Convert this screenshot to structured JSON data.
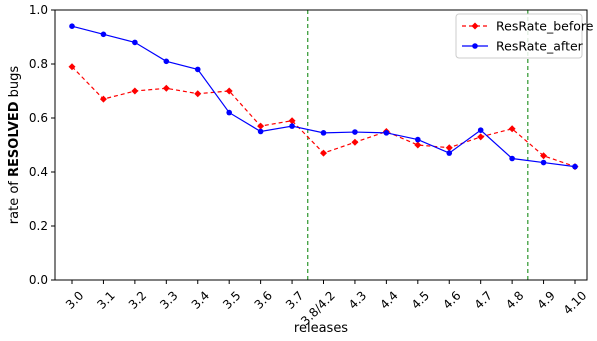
{
  "chart_data": {
    "type": "line",
    "xlabel": "releases",
    "ylabel_prefix": "rate of ",
    "ylabel_bold": "RESOLVED",
    "ylabel_suffix": " bugs",
    "ylim": [
      0.0,
      1.0
    ],
    "yticks": [
      "0.0",
      "0.2",
      "0.4",
      "0.6",
      "0.8",
      "1.0"
    ],
    "categories": [
      "3.0",
      "3.1",
      "3.2",
      "3.3",
      "3.4",
      "3.5",
      "3.6",
      "3.7",
      "3.8/4.2",
      "4.3",
      "4.4",
      "4.5",
      "4.6",
      "4.7",
      "4.8",
      "4.9",
      "4.10"
    ],
    "series": [
      {
        "name": "ResRate_before",
        "color": "#ff0000",
        "style": "dashed",
        "marker": "diamond",
        "values": [
          0.79,
          0.67,
          0.7,
          0.71,
          0.69,
          0.7,
          0.57,
          0.59,
          0.47,
          0.51,
          0.55,
          0.5,
          0.49,
          0.53,
          0.56,
          0.46,
          0.42
        ]
      },
      {
        "name": "ResRate_after",
        "color": "#0000ff",
        "style": "solid",
        "marker": "circle",
        "values": [
          0.94,
          0.91,
          0.88,
          0.81,
          0.78,
          0.62,
          0.55,
          0.57,
          0.545,
          0.548,
          0.545,
          0.52,
          0.47,
          0.555,
          0.45,
          0.435,
          0.42
        ]
      }
    ],
    "vlines": [
      {
        "after_category_index": 7,
        "color": "#008000",
        "style": "dashed"
      },
      {
        "after_category_index": 14,
        "color": "#008000",
        "style": "dashed"
      }
    ],
    "legend_position": "top-right",
    "grid": false
  }
}
